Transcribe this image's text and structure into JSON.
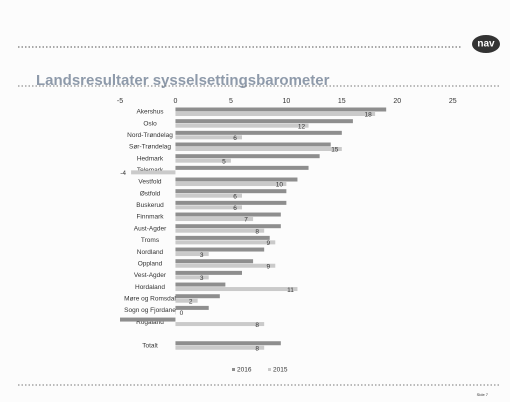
{
  "logo": "nav",
  "page_number": "Side 7",
  "chart_data": {
    "type": "hbar",
    "title": "Landsresultater sysselsettingsbarometer",
    "categories": [
      "Akershus",
      "Oslo",
      "Nord-Trøndelag",
      "Sør-Trøndelag",
      "Hedmark",
      "Telemark",
      "Vestfold",
      "Østfold",
      "Buskerud",
      "Finnmark",
      "Aust-Agder",
      "Troms",
      "Nordland",
      "Oppland",
      "Vest-Agder",
      "Hordaland",
      "Møre og Romsdal",
      "Sogn og Fjordane",
      "Rogaland",
      "Totalt"
    ],
    "series": [
      {
        "name": "2016",
        "color": "#8e8e8e",
        "values": [
          19,
          16,
          15,
          14,
          13,
          12,
          11,
          10,
          10,
          9.5,
          9.5,
          8.5,
          8,
          7,
          6,
          4.5,
          4,
          3,
          -5,
          9.5
        ]
      },
      {
        "name": "2015",
        "color": "#cacaca",
        "values": [
          18,
          12,
          6,
          15,
          5,
          -4,
          10,
          6,
          6,
          7,
          8,
          9,
          3,
          9,
          3,
          11,
          2,
          0,
          8,
          8
        ]
      }
    ],
    "xlim": [
      -5,
      28
    ],
    "xticks": [
      -5,
      0,
      5,
      10,
      15,
      20,
      25
    ],
    "legend": "bottom"
  }
}
